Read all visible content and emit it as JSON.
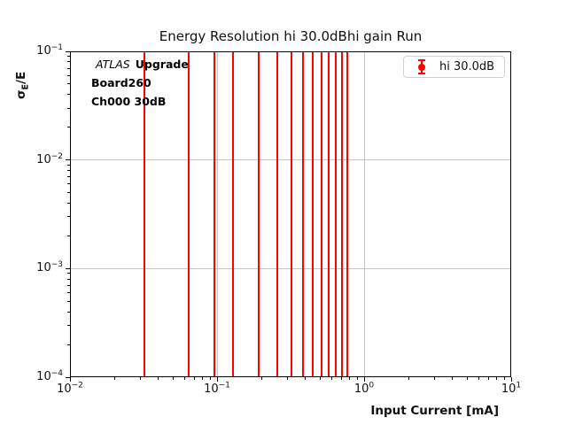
{
  "chart_data": {
    "type": "errorbar",
    "title": "Energy Resolution hi 30.0dBhi gain Run",
    "xlabel": "Input Current [mA]",
    "ylabel": "σ_E/E",
    "ylabel_parts": {
      "symbol": "σ",
      "subscript": "E",
      "rest": "/E"
    },
    "xscale": "log",
    "yscale": "log",
    "xlim": [
      0.01,
      10
    ],
    "ylim": [
      0.0001,
      0.1
    ],
    "grid": true,
    "x_major_ticks": [
      0.01,
      0.1,
      1,
      10
    ],
    "x_tick_labels": [
      {
        "base": "10",
        "exp": "−2"
      },
      {
        "base": "10",
        "exp": "−1"
      },
      {
        "base": "10",
        "exp": "0"
      },
      {
        "base": "10",
        "exp": "1"
      }
    ],
    "y_major_ticks": [
      0.1,
      0.01,
      0.001,
      0.0001
    ],
    "y_tick_labels": [
      {
        "base": "10",
        "exp": "−1"
      },
      {
        "base": "10",
        "exp": "−2"
      },
      {
        "base": "10",
        "exp": "−3"
      },
      {
        "base": "10",
        "exp": "−4"
      }
    ],
    "x_gridlines": [
      0.1,
      1
    ],
    "y_gridlines": [
      0.01,
      0.001
    ],
    "series": [
      {
        "name": "hi 30.0dB",
        "color": "#ff0000",
        "marker": "errorbar-dot",
        "x": [
          0.032,
          0.064,
          0.096,
          0.128,
          0.192,
          0.256,
          0.32,
          0.384,
          0.448,
          0.512,
          0.576,
          0.64,
          0.704,
          0.768
        ],
        "bar_extent": "full_visible_y_range"
      }
    ],
    "legend": {
      "position": "upper right",
      "entries": [
        {
          "label": "hi 30.0dB",
          "color": "#ff0000"
        }
      ]
    },
    "annotation": {
      "experiment": "ATLAS",
      "program": "Upgrade",
      "line2": "Board260",
      "line3": "Ch000 30dB"
    },
    "colors": {
      "series": "#ff0000",
      "grid": "#c4c4c4",
      "text": "#000000",
      "legend_border": "#d2d2d2"
    }
  }
}
